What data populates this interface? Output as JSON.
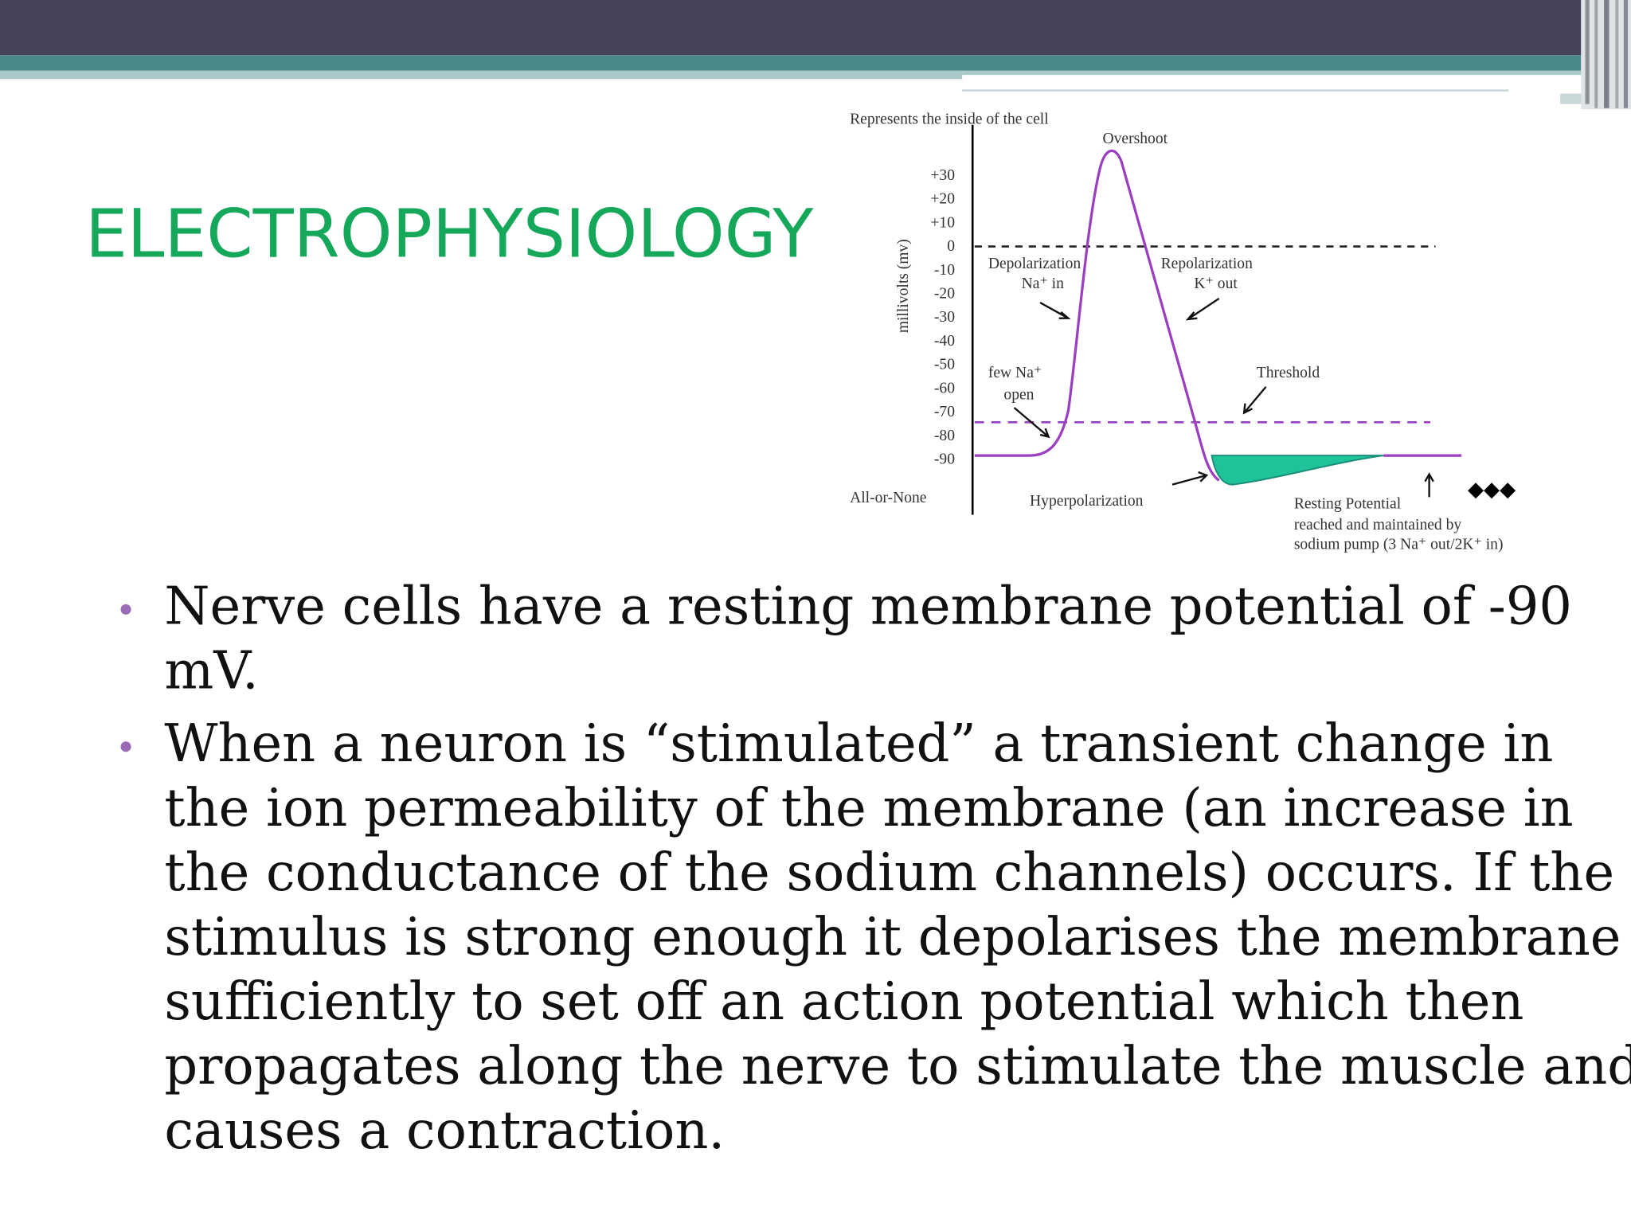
{
  "header": {
    "title": "ELECTROPHYSIOLOGY"
  },
  "figure": {
    "caption": "Represents the inside of the cell",
    "peak_label": "Overshoot",
    "axis_label": "millivolts (mv)",
    "yticks": [
      "+30",
      "+20",
      "+10",
      "0",
      "-10",
      "-20",
      "-30",
      "-40",
      "-50",
      "-60",
      "-70",
      "-80",
      "-90"
    ],
    "depolarization": [
      "Depolarization",
      "Na⁺ in"
    ],
    "repolarization": [
      "Repolarization",
      "K⁺ out"
    ],
    "few_na": [
      "few Na⁺",
      "open"
    ],
    "threshold": "Threshold",
    "all_or_none": "All-or-None",
    "hyperpolarization": "Hyperpolarization",
    "resting": [
      "Resting Potential",
      "reached and maintained by",
      "sodium pump (3 Na⁺ out/2K⁺ in)"
    ],
    "diamonds": "◆◆◆"
  },
  "bullets": [
    [
      "Nerve cells have a resting membrane potential of  -90",
      "mV."
    ],
    [
      "When a neuron is “stimulated” a transient change in",
      "the ion permeability of the membrane (an increase in",
      "the conductance of the sodium channels) occurs. If the",
      "stimulus is strong enough it depolarises the membrane",
      "sufficiently to set off an action potential which then",
      "propagates along the nerve to stimulate the muscle and",
      "causes a contraction."
    ]
  ]
}
